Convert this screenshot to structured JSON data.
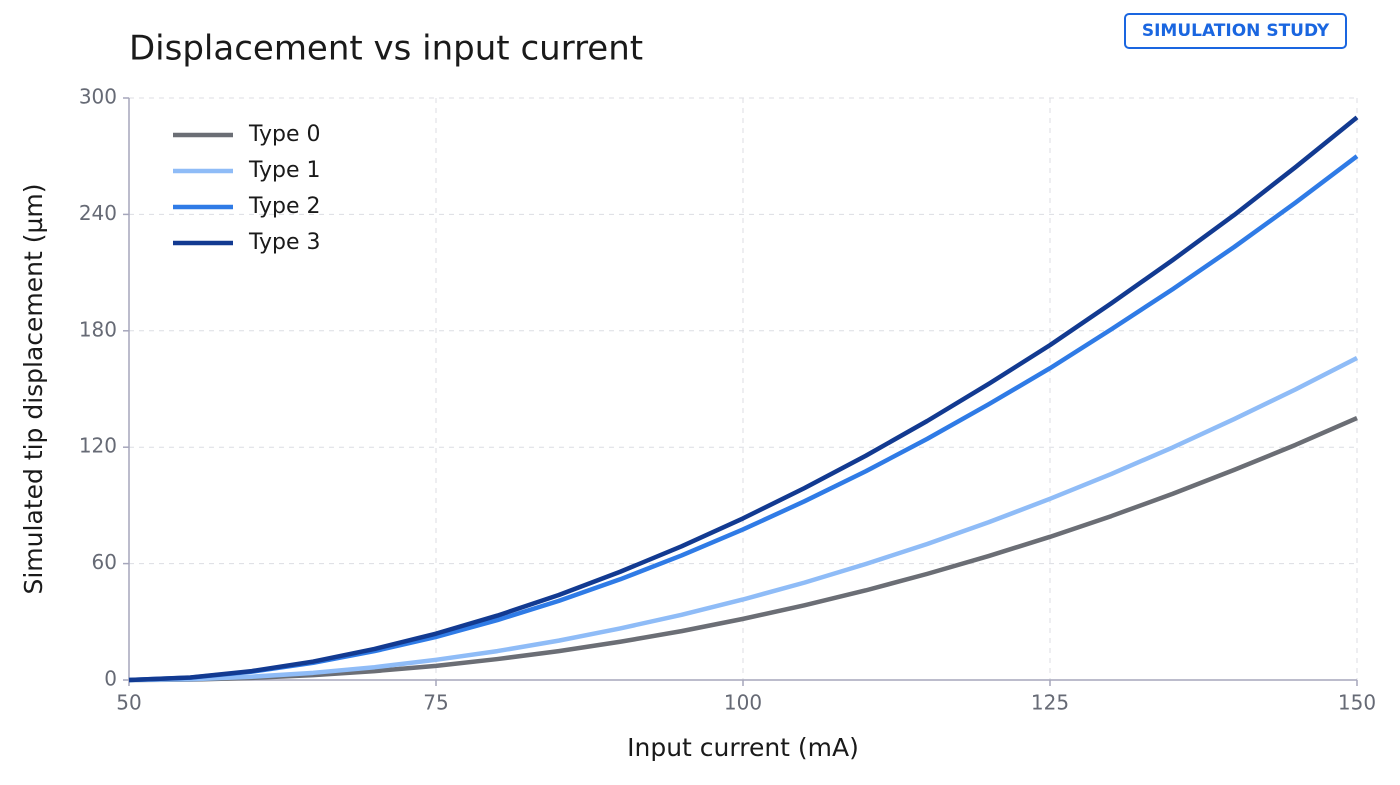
{
  "badge": "SIMULATION STUDY",
  "chart_data": {
    "type": "line",
    "title": "Displacement vs input current",
    "x_label": "Input current (mA)",
    "y_label": "Simulated tip displacement (µm)",
    "x": [
      50,
      55,
      60,
      65,
      70,
      75,
      80,
      85,
      90,
      95,
      100,
      105,
      110,
      115,
      120,
      125,
      130,
      135,
      140,
      145,
      150
    ],
    "series": [
      {
        "name": "Type 0",
        "color": "#6b6e75",
        "values": [
          0,
          0.2,
          1.1,
          2.5,
          4.6,
          7.3,
          10.8,
          14.9,
          19.7,
          25.2,
          31.5,
          38.5,
          46.2,
          54.7,
          63.9,
          73.8,
          84.5,
          96.0,
          108.3,
          121.2,
          135
        ]
      },
      {
        "name": "Type 1",
        "color": "#8fbcf7",
        "values": [
          0,
          0.4,
          1.7,
          3.7,
          6.6,
          10.4,
          14.9,
          20.3,
          26.6,
          33.6,
          41.5,
          50.2,
          59.8,
          70.1,
          81.3,
          93.4,
          106.2,
          119.9,
          134.5,
          149.8,
          166
        ]
      },
      {
        "name": "Type 2",
        "color": "#2f7be6",
        "values": [
          0,
          1.2,
          4.3,
          8.9,
          14.9,
          22.2,
          30.9,
          40.8,
          51.9,
          64.2,
          77.6,
          92.1,
          107.6,
          124.3,
          142.1,
          160.7,
          180.8,
          201.5,
          223.2,
          246.1,
          270
        ]
      },
      {
        "name": "Type 3",
        "color": "#123a91",
        "values": [
          0,
          1.3,
          4.6,
          9.5,
          16.0,
          23.9,
          33.2,
          43.8,
          55.8,
          68.9,
          83.3,
          98.9,
          115.6,
          133.5,
          152.6,
          172.6,
          194.2,
          216.5,
          239.7,
          264.4,
          290
        ]
      }
    ],
    "xlim": [
      50,
      150
    ],
    "xticks": [
      50,
      75,
      100,
      125,
      150
    ],
    "ylim": [
      0,
      300
    ],
    "yticks": [
      0,
      60,
      120,
      180,
      240,
      300
    ],
    "grid": true,
    "legend": "upper-left"
  }
}
